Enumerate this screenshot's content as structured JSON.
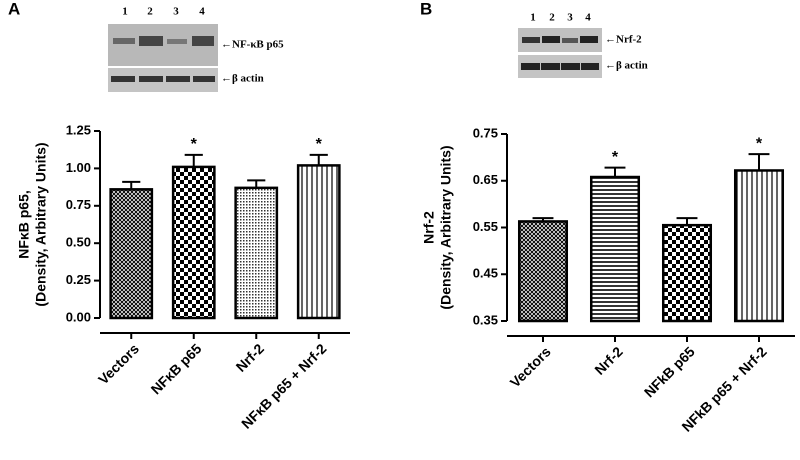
{
  "chart_data": [
    {
      "type": "bar",
      "panel": "A",
      "y_label": [
        "NFκB p65,",
        "(Density, Arbitrary Units)"
      ],
      "categories": [
        "Vectors",
        "NFκB p65",
        "Nrf-2",
        "NFκB p65 + Nrf-2"
      ],
      "values": [
        0.86,
        1.01,
        0.87,
        1.02
      ],
      "errors": [
        0.05,
        0.08,
        0.05,
        0.07
      ],
      "patterns": [
        "crosshatch",
        "checker",
        "dots",
        "vlines"
      ],
      "ylim": [
        0,
        1.25
      ],
      "yticks": [
        {
          "value": 0,
          "label": "0.00"
        },
        0.25,
        {
          "value": 0.5,
          "label": "0.50"
        },
        0.75,
        {
          "value": 1,
          "label": "1.00"
        },
        1.25
      ],
      "annotations": [
        {
          "category": "NFκB p65",
          "text": "*"
        },
        {
          "category": "NFκB p65 + Nrf-2",
          "text": "*"
        }
      ],
      "blot": {
        "lanes": [
          "1",
          "2",
          "3",
          "4"
        ],
        "labels": [
          "←NF-κB p65",
          "←β actin"
        ]
      }
    },
    {
      "type": "bar",
      "panel": "B",
      "y_label": [
        "Nrf-2",
        "(Density, Arbitrary Units)"
      ],
      "categories": [
        "Vectors",
        "Nrf-2",
        "NFkB p65",
        "NFkB p65 + Nrf-2"
      ],
      "values": [
        0.563,
        0.658,
        0.555,
        0.672
      ],
      "errors": [
        0.007,
        0.02,
        0.015,
        0.035
      ],
      "patterns": [
        "crosshatch",
        "hlines",
        "checker",
        "vlines"
      ],
      "ylim": [
        0.35,
        0.75
      ],
      "yticks": [
        0.35,
        0.45,
        0.55,
        0.65,
        0.75
      ],
      "annotations": [
        {
          "category": "Nrf-2",
          "text": "*"
        },
        {
          "category": "NFkB p65 + Nrf-2",
          "text": "*"
        }
      ],
      "blot": {
        "lanes": [
          "1",
          "2",
          "3",
          "4"
        ],
        "labels": [
          "←Nrf-2",
          "←β actin"
        ]
      }
    }
  ]
}
